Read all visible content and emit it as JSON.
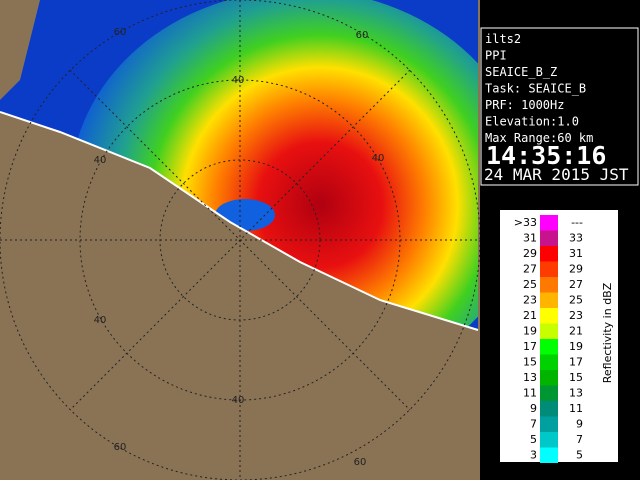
{
  "info_panel": {
    "lines": [
      "ilts2",
      "PPI",
      "SEAICE_B_Z",
      "Task: SEAICE_B",
      "PRF: 1000Hz",
      "Elevation:1.0",
      "Max Range:60 km"
    ],
    "time": "14:35:16",
    "date": "24 MAR 2015 JST"
  },
  "legend": {
    "title": "Reflectivity in dBZ",
    "rows": [
      {
        "low": ">33",
        "high": "---",
        "color": "#ff00ff"
      },
      {
        "low": "31",
        "high": "33",
        "color": "#c8148c"
      },
      {
        "low": "29",
        "high": "31",
        "color": "#ff0000"
      },
      {
        "low": "27",
        "high": "29",
        "color": "#ff3c00"
      },
      {
        "low": "25",
        "high": "27",
        "color": "#ff7800"
      },
      {
        "low": "23",
        "high": "25",
        "color": "#ffb400"
      },
      {
        "low": "21",
        "high": "23",
        "color": "#ffff00"
      },
      {
        "low": "19",
        "high": "21",
        "color": "#c8ff00"
      },
      {
        "low": "17",
        "high": "19",
        "color": "#00ff00"
      },
      {
        "low": "15",
        "high": "17",
        "color": "#00d200"
      },
      {
        "low": "13",
        "high": "15",
        "color": "#00b400"
      },
      {
        "low": "11",
        "high": "13",
        "color": "#009632"
      },
      {
        "low": "9",
        "high": "11",
        "color": "#008c78"
      },
      {
        "low": "7",
        "high": "9",
        "color": "#00a0a0"
      },
      {
        "low": "5",
        "high": "7",
        "color": "#00c8c8"
      },
      {
        "low": "3",
        "high": "5",
        "color": "#00ffff"
      }
    ]
  },
  "range_labels": [
    "60",
    "60",
    "40",
    "40",
    "40",
    "40",
    "40",
    "60",
    "60"
  ]
}
